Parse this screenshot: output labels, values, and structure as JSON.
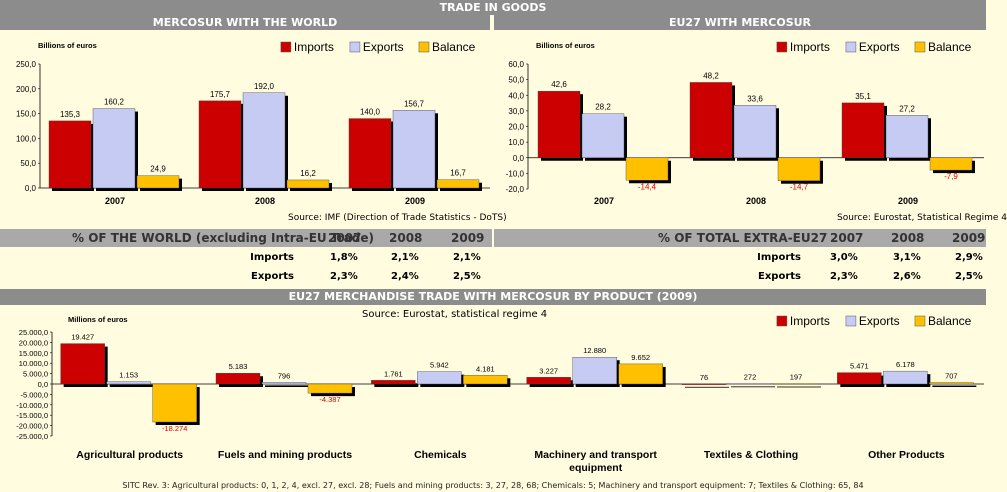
{
  "page_title": "TRADE IN GOODS",
  "panel_left": {
    "title": "MERCOSUR WITH THE WORLD",
    "unit": "Billions of euros",
    "source": "Source: IMF (Direction of Trade Statistics - DoTS)"
  },
  "panel_right": {
    "title": "EU27 WITH MERCOSUR",
    "unit": "Billions of euros",
    "source": "Source: Eurostat, Statistical Regime 4"
  },
  "legend": {
    "imports": "Imports",
    "exports": "Exports",
    "balance": "Balance"
  },
  "colors": {
    "imports": "#cc0000",
    "exports": "#c6cbf4",
    "balance": "#ffc000",
    "header": "#8c8c8c",
    "row": "#a9a9a9"
  },
  "table_left": {
    "header": "% OF THE WORLD (excluding Intra-EU Trade)",
    "years": [
      "2007",
      "2008",
      "2009"
    ],
    "rows": [
      {
        "label": "Imports",
        "values": [
          "1,8%",
          "2,1%",
          "2,1%"
        ]
      },
      {
        "label": "Exports",
        "values": [
          "2,3%",
          "2,4%",
          "2,5%"
        ]
      }
    ]
  },
  "table_right": {
    "header": "% OF TOTAL EXTRA-EU27",
    "years": [
      "2007",
      "2008",
      "2009"
    ],
    "rows": [
      {
        "label": "Imports",
        "values": [
          "3,0%",
          "3,1%",
          "2,9%"
        ]
      },
      {
        "label": "Exports",
        "values": [
          "2,3%",
          "2,6%",
          "2,5%"
        ]
      }
    ]
  },
  "bottom": {
    "title": "EU27 MERCHANDISE TRADE WITH MERCOSUR BY PRODUCT (2009)",
    "unit": "Millions of euros",
    "source": "Source: Eurostat, statistical regime 4"
  },
  "footnote": "SITC Rev. 3: Agricultural products: 0, 1, 2, 4, excl. 27, excl. 28; Fuels and mining products: 3, 27, 28, 68; Chemicals: 5; Machinery and transport equipment: 7; Textiles & Clothing: 65, 84",
  "chart_data": [
    {
      "type": "bar",
      "title": "MERCOSUR WITH THE WORLD",
      "ylabel": "Billions of euros",
      "categories": [
        "2007",
        "2008",
        "2009"
      ],
      "series": [
        {
          "name": "Imports",
          "values": [
            135.3,
            175.7,
            140.0
          ],
          "labels": [
            "135,3",
            "175,7",
            "140,0"
          ]
        },
        {
          "name": "Exports",
          "values": [
            160.2,
            192.0,
            156.7
          ],
          "labels": [
            "160,2",
            "192,0",
            "156,7"
          ]
        },
        {
          "name": "Balance",
          "values": [
            24.9,
            16.2,
            16.7
          ],
          "labels": [
            "24,9",
            "16,2",
            "16,7"
          ]
        }
      ],
      "ylim": [
        0,
        250
      ],
      "yticks": [
        "250,0",
        "200,0",
        "150,0",
        "100,0",
        "50,0",
        "0,0"
      ],
      "legend": "top-right"
    },
    {
      "type": "bar",
      "title": "EU27 WITH MERCOSUR",
      "ylabel": "Billions of euros",
      "categories": [
        "2007",
        "2008",
        "2009"
      ],
      "series": [
        {
          "name": "Imports",
          "values": [
            42.6,
            48.2,
            35.1
          ],
          "labels": [
            "42,6",
            "48,2",
            "35,1"
          ]
        },
        {
          "name": "Exports",
          "values": [
            28.2,
            33.6,
            27.2
          ],
          "labels": [
            "28,2",
            "33,6",
            "27,2"
          ]
        },
        {
          "name": "Balance",
          "values": [
            -14.4,
            -14.7,
            -7.9
          ],
          "labels": [
            "-14,4",
            "-14,7",
            "-7,9"
          ]
        }
      ],
      "ylim": [
        -20,
        60
      ],
      "yticks": [
        "60,0",
        "50,0",
        "40,0",
        "30,0",
        "20,0",
        "10,0",
        "0,0",
        "-10,0",
        "-20,0"
      ],
      "legend": "top-right"
    },
    {
      "type": "bar",
      "title": "EU27 MERCHANDISE TRADE WITH MERCOSUR BY PRODUCT (2009)",
      "ylabel": "Millions of euros",
      "categories": [
        "Agricultural products",
        "Fuels and mining products",
        "Chemicals",
        "Machinery and transport equipment",
        "Textiles & Clothing",
        "Other Products"
      ],
      "series": [
        {
          "name": "Imports",
          "values": [
            19427,
            5183,
            1761,
            3227,
            76,
            5471
          ],
          "labels": [
            "19.427",
            "5.183",
            "1.761",
            "3.227",
            "76",
            "5.471"
          ]
        },
        {
          "name": "Exports",
          "values": [
            1153,
            796,
            5942,
            12880,
            272,
            6178
          ],
          "labels": [
            "1.153",
            "796",
            "5.942",
            "12.880",
            "272",
            "6.178"
          ]
        },
        {
          "name": "Balance",
          "values": [
            -18274,
            -4387,
            4181,
            9652,
            197,
            707
          ],
          "labels": [
            "-18.274",
            "-4.387",
            "4.181",
            "9.652",
            "197",
            "707"
          ]
        }
      ],
      "ylim": [
        -25000,
        25000
      ],
      "yticks": [
        "25.000,0",
        "20.000,0",
        "15.000,0",
        "10.000,0",
        "5.000,0",
        "0,0",
        "-5.000,0",
        "-10.000,0",
        "-15.000,0",
        "-20.000,0",
        "-25.000,0"
      ],
      "legend": "top-right"
    }
  ]
}
